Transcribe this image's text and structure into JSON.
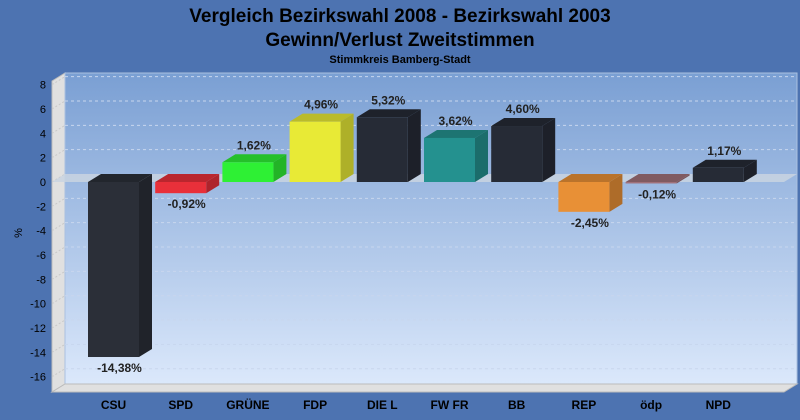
{
  "chart_data": {
    "type": "bar",
    "title": "Vergleich Bezirkswahl 2008 - Bezirkswahl 2003",
    "title2": "Gewinn/Verlust Zweitstimmen",
    "subtitle": "Stimmkreis Bamberg-Stadt",
    "xlabel": "",
    "ylabel": "%",
    "ylim": [
      -17,
      8
    ],
    "yticks": [
      8,
      6,
      4,
      2,
      0,
      -2,
      -4,
      -6,
      -8,
      -10,
      -12,
      -14,
      -16
    ],
    "categories": [
      "CSU",
      "SPD",
      "GRÜNE",
      "FDP",
      "DIE L",
      "FW FR",
      "BB",
      "REP",
      "ödp",
      "NPD"
    ],
    "values": [
      -14.38,
      -0.92,
      1.62,
      4.96,
      5.32,
      3.62,
      4.6,
      -2.45,
      -0.12,
      1.17
    ],
    "labels": [
      "-14,38%",
      "-0,92%",
      "1,62%",
      "4,96%",
      "5,32%",
      "3,62%",
      "4,60%",
      "-2,45%",
      "-0,12%",
      "1,17%"
    ],
    "colors": [
      "#2b2f38",
      "#e8303a",
      "#2ef034",
      "#e8ea36",
      "#262b36",
      "#24918f",
      "#262b36",
      "#e89036",
      "#a07079",
      "#262b36"
    ],
    "grid": true
  }
}
